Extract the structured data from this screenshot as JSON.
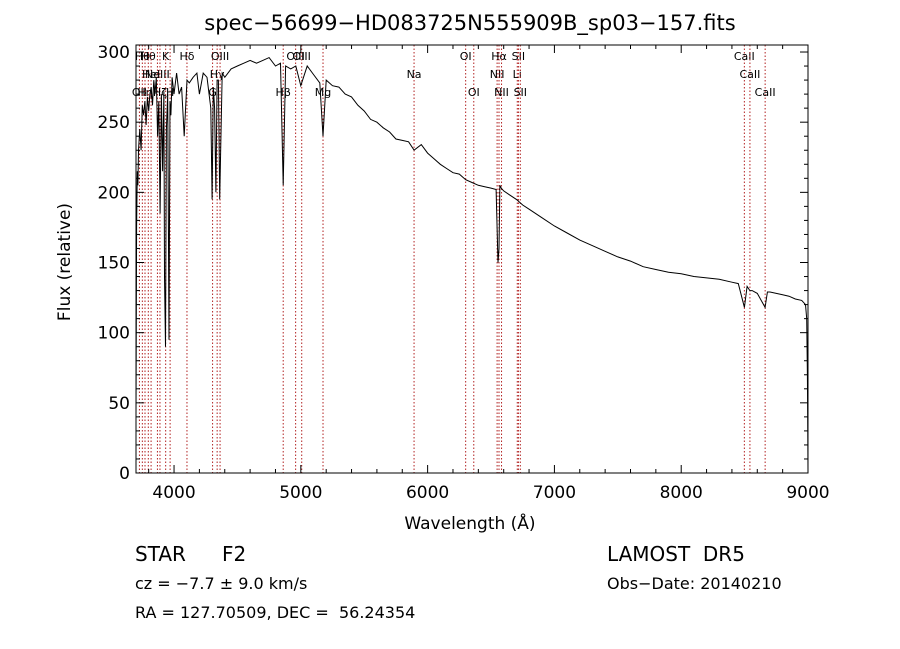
{
  "chart_data": {
    "type": "line",
    "title": "spec−56699−HD083725N555909B_sp03−157.fits",
    "xlabel": "Wavelength (Å)",
    "ylabel": "Flux (relative)",
    "xlim": [
      3700,
      9000
    ],
    "ylim": [
      0,
      305
    ],
    "xticks": [
      4000,
      5000,
      6000,
      7000,
      8000,
      9000
    ],
    "yticks": [
      0,
      50,
      100,
      150,
      200,
      250,
      300
    ],
    "grid": false,
    "series": [
      {
        "x": [
          3700,
          3705,
          3710,
          3715,
          3720,
          3730,
          3740,
          3750,
          3760,
          3770,
          3780,
          3790,
          3800,
          3810,
          3820,
          3830,
          3840,
          3850,
          3860,
          3870,
          3880,
          3890,
          3900,
          3910,
          3920,
          3925,
          3933,
          3940,
          3950,
          3960,
          3968,
          3975,
          3985,
          4000,
          4020,
          4040,
          4060,
          4080,
          4102,
          4120,
          4150,
          4180,
          4200,
          4230,
          4260,
          4290,
          4300,
          4310,
          4320,
          4330,
          4340,
          4350,
          4360,
          4380,
          4400,
          4450,
          4500,
          4550,
          4600,
          4650,
          4700,
          4750,
          4800,
          4840,
          4861,
          4880,
          4920,
          4960,
          5000,
          5050,
          5100,
          5150,
          5175,
          5200,
          5250,
          5300,
          5350,
          5400,
          5450,
          5500,
          5550,
          5600,
          5650,
          5700,
          5750,
          5800,
          5850,
          5893,
          5950,
          6000,
          6050,
          6100,
          6150,
          6200,
          6250,
          6300,
          6350,
          6400,
          6450,
          6500,
          6540,
          6555,
          6563,
          6570,
          6580,
          6600,
          6650,
          6700,
          6750,
          6800,
          6900,
          7000,
          7100,
          7200,
          7300,
          7400,
          7500,
          7600,
          7700,
          7800,
          7900,
          8000,
          8100,
          8200,
          8300,
          8400,
          8450,
          8498,
          8520,
          8542,
          8560,
          8600,
          8662,
          8680,
          8700,
          8750,
          8800,
          8850,
          8900,
          8950,
          8980,
          8990,
          8995,
          9000
        ],
        "y": [
          40,
          175,
          215,
          205,
          230,
          245,
          230,
          262,
          255,
          265,
          248,
          268,
          258,
          270,
          275,
          262,
          280,
          270,
          282,
          240,
          265,
          185,
          270,
          215,
          272,
          140,
          90,
          245,
          270,
          95,
          265,
          255,
          282,
          270,
          285,
          270,
          275,
          240,
          280,
          278,
          282,
          285,
          270,
          285,
          282,
          260,
          195,
          275,
          260,
          200,
          280,
          280,
          195,
          285,
          282,
          288,
          290,
          292,
          294,
          292,
          294,
          296,
          290,
          292,
          205,
          290,
          288,
          290,
          276,
          290,
          284,
          278,
          240,
          280,
          276,
          275,
          270,
          268,
          262,
          258,
          252,
          250,
          246,
          243,
          238,
          237,
          236,
          230,
          234,
          228,
          224,
          220,
          217,
          214,
          213,
          209,
          207,
          205,
          204,
          203,
          202,
          150,
          160,
          205,
          203,
          201,
          198,
          195,
          191,
          188,
          182,
          176,
          171,
          166,
          162,
          158,
          154,
          151,
          147,
          145,
          143,
          142,
          140,
          139,
          138,
          136,
          135,
          118,
          133,
          130,
          130,
          128,
          118,
          129,
          129,
          128,
          127,
          126,
          124,
          123,
          120,
          110,
          70,
          0
        ]
      }
    ],
    "lines": [
      {
        "x": 3727,
        "label": "OII",
        "row": 2
      },
      {
        "x": 3750,
        "label": "Hθ",
        "row": 0
      },
      {
        "x": 3771,
        "label": "Hη",
        "row": 2
      },
      {
        "x": 3797,
        "label": "Hθ",
        "row": 0
      },
      {
        "x": 3819,
        "label": "HeI",
        "row": 1
      },
      {
        "x": 3869,
        "label": "NeIII",
        "row": 1
      },
      {
        "x": 3889,
        "label": "Hζ",
        "row": 2
      },
      {
        "x": 3934,
        "label": "K",
        "row": 0
      },
      {
        "x": 3969,
        "label": "H",
        "row": 2
      },
      {
        "x": 4102,
        "label": "Hδ",
        "row": 0
      },
      {
        "x": 4304,
        "label": "G",
        "row": 2
      },
      {
        "x": 4340,
        "label": "Hγ",
        "row": 1
      },
      {
        "x": 4363,
        "label": "OIII",
        "row": 0
      },
      {
        "x": 4861,
        "label": "Hβ",
        "row": 2
      },
      {
        "x": 4959,
        "label": "OIII",
        "row": 0
      },
      {
        "x": 5007,
        "label": "OIII",
        "row": 0
      },
      {
        "x": 5175,
        "label": "Mg",
        "row": 2
      },
      {
        "x": 5893,
        "label": "Na",
        "row": 1
      },
      {
        "x": 6300,
        "label": "OI",
        "row": 0
      },
      {
        "x": 6364,
        "label": "OI",
        "row": 2
      },
      {
        "x": 6548,
        "label": "NII",
        "row": 1
      },
      {
        "x": 6563,
        "label": "Hα",
        "row": 0
      },
      {
        "x": 6583,
        "label": "NII",
        "row": 2
      },
      {
        "x": 6707,
        "label": "Li",
        "row": 1
      },
      {
        "x": 6716,
        "label": "SII",
        "row": 0
      },
      {
        "x": 6731,
        "label": "SII",
        "row": 2
      },
      {
        "x": 8498,
        "label": "CaII",
        "row": 0
      },
      {
        "x": 8542,
        "label": "CaII",
        "row": 1
      },
      {
        "x": 8662,
        "label": "CaII",
        "row": 2
      }
    ]
  },
  "info": {
    "object_class": "STAR",
    "subclass": "F2",
    "cz": "cz = −7.7 ± 9.0 km/s",
    "ra_dec": "RA = 127.70509, DEC =  56.24354",
    "survey": "LAMOST  DR5",
    "obs_date": "Obs−Date: 20140210"
  },
  "colors": {
    "line_marker": "#b22222",
    "spectrum": "#000000"
  }
}
